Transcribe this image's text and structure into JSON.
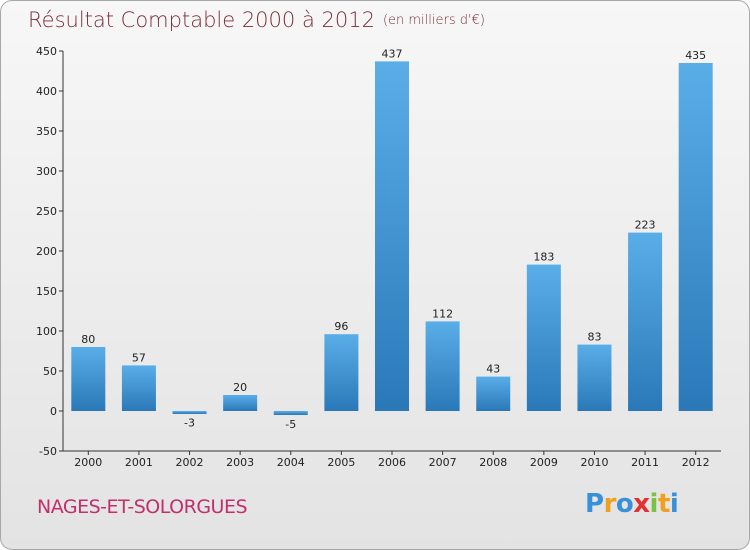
{
  "title": "Résultat Comptable 2000 à 2012",
  "subtitle": "(en milliers d'€)",
  "commune": "NAGES-ET-SOLORGUES",
  "logo": {
    "letters": [
      "P",
      "r",
      "o",
      "x",
      "i",
      "t",
      "i"
    ],
    "colors": [
      "#3a8fd9",
      "#f0a020",
      "#3a8fd9",
      "#e53030",
      "#7cc242",
      "#f0a020",
      "#3a8fd9"
    ]
  },
  "colors": {
    "bar_top": "#5aaee8",
    "bar_bottom": "#2a78b8",
    "title": "#7a2e3a",
    "commune": "#c1306b"
  },
  "chart_data": {
    "type": "bar",
    "title": "Résultat Comptable 2000 à 2012",
    "xlabel": "",
    "ylabel": "",
    "categories": [
      "2000",
      "2001",
      "2002",
      "2003",
      "2004",
      "2005",
      "2006",
      "2007",
      "2008",
      "2009",
      "2010",
      "2011",
      "2012"
    ],
    "values": [
      80,
      57,
      -3,
      20,
      -5,
      96,
      437,
      112,
      43,
      183,
      83,
      223,
      435
    ],
    "ylim": [
      -50,
      450
    ],
    "yticks": [
      -50,
      0,
      50,
      100,
      150,
      200,
      250,
      300,
      350,
      400,
      450
    ],
    "grid": false,
    "legend": "none"
  }
}
